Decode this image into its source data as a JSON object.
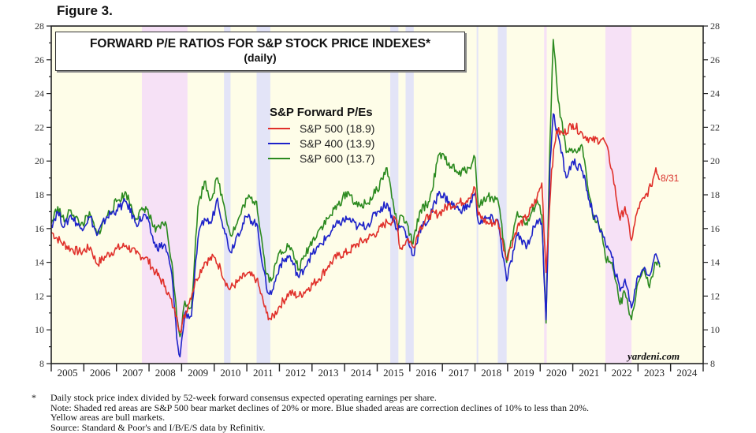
{
  "figure_label": "Figure 3.",
  "chart_data": {
    "type": "line",
    "title": "FORWARD P/E RATIOS FOR S&P STOCK PRICE INDEXES*",
    "subtitle": "(daily)",
    "xlabel": "",
    "ylabel": "",
    "xlim": [
      2005,
      2025
    ],
    "ylim": [
      8,
      28
    ],
    "x_ticks": [
      "2005",
      "2006",
      "2007",
      "2008",
      "2009",
      "2010",
      "2011",
      "2012",
      "2013",
      "2014",
      "2015",
      "2016",
      "2017",
      "2018",
      "2019",
      "2020",
      "2021",
      "2022",
      "2023",
      "2024"
    ],
    "y_ticks": [
      8,
      10,
      12,
      14,
      16,
      18,
      20,
      22,
      24,
      26,
      28
    ],
    "y_axes": "left and right",
    "legend": {
      "title": "S&P Forward P/Es",
      "placement": "upper-center",
      "entries": [
        "S&P 500 (18.9)",
        "S&P 400 (13.9)",
        "S&P 600 (13.7)"
      ]
    },
    "end_label": "8/31",
    "watermark": "yardeni.com",
    "shaded_regions": [
      {
        "type": "bear",
        "color": "#f6e1f6",
        "start": 2007.78,
        "end": 2009.18
      },
      {
        "type": "correction",
        "color": "#e3e4f7",
        "start": 2010.3,
        "end": 2010.5
      },
      {
        "type": "correction",
        "color": "#e3e4f7",
        "start": 2011.3,
        "end": 2011.72
      },
      {
        "type": "correction",
        "color": "#e3e4f7",
        "start": 2015.4,
        "end": 2015.65
      },
      {
        "type": "correction",
        "color": "#e3e4f7",
        "start": 2015.87,
        "end": 2016.12
      },
      {
        "type": "correction",
        "color": "#e3e4f7",
        "start": 2018.05,
        "end": 2018.1
      },
      {
        "type": "correction",
        "color": "#e3e4f7",
        "start": 2018.7,
        "end": 2018.97
      },
      {
        "type": "bear",
        "color": "#f6e1f6",
        "start": 2020.12,
        "end": 2020.2
      },
      {
        "type": "bear",
        "color": "#f6e1f6",
        "start": 2022.0,
        "end": 2022.8
      }
    ],
    "bull_color": "#fefde8",
    "series": [
      {
        "name": "S&P 500",
        "color": "#e0302a",
        "last": 18.9,
        "points": [
          [
            2005.0,
            15.8
          ],
          [
            2005.3,
            15.2
          ],
          [
            2005.6,
            14.8
          ],
          [
            2005.9,
            14.6
          ],
          [
            2006.2,
            14.9
          ],
          [
            2006.4,
            13.9
          ],
          [
            2006.7,
            14.4
          ],
          [
            2007.0,
            14.8
          ],
          [
            2007.3,
            15.0
          ],
          [
            2007.6,
            14.5
          ],
          [
            2007.9,
            14.3
          ],
          [
            2008.2,
            13.4
          ],
          [
            2008.5,
            12.6
          ],
          [
            2008.75,
            11.3
          ],
          [
            2008.85,
            10.8
          ],
          [
            2008.95,
            9.9
          ],
          [
            2009.2,
            11.5
          ],
          [
            2009.45,
            13.0
          ],
          [
            2009.7,
            14.0
          ],
          [
            2010.0,
            14.3
          ],
          [
            2010.2,
            13.6
          ],
          [
            2010.45,
            12.4
          ],
          [
            2010.7,
            12.8
          ],
          [
            2011.0,
            13.3
          ],
          [
            2011.3,
            13.0
          ],
          [
            2011.6,
            11.0
          ],
          [
            2011.75,
            10.6
          ],
          [
            2012.0,
            11.4
          ],
          [
            2012.3,
            12.2
          ],
          [
            2012.6,
            12.0
          ],
          [
            2012.9,
            12.5
          ],
          [
            2013.2,
            13.0
          ],
          [
            2013.5,
            13.8
          ],
          [
            2013.8,
            14.4
          ],
          [
            2014.1,
            14.6
          ],
          [
            2014.4,
            15.1
          ],
          [
            2014.7,
            15.4
          ],
          [
            2015.0,
            15.8
          ],
          [
            2015.3,
            16.4
          ],
          [
            2015.6,
            16.5
          ],
          [
            2015.7,
            14.8
          ],
          [
            2015.95,
            15.4
          ],
          [
            2016.1,
            14.9
          ],
          [
            2016.3,
            16.0
          ],
          [
            2016.6,
            16.8
          ],
          [
            2016.9,
            16.9
          ],
          [
            2017.2,
            17.4
          ],
          [
            2017.5,
            17.5
          ],
          [
            2017.8,
            17.8
          ],
          [
            2018.0,
            18.4
          ],
          [
            2018.1,
            16.8
          ],
          [
            2018.4,
            16.3
          ],
          [
            2018.7,
            16.4
          ],
          [
            2018.97,
            14.2
          ],
          [
            2019.3,
            16.1
          ],
          [
            2019.6,
            16.7
          ],
          [
            2019.9,
            17.8
          ],
          [
            2020.05,
            18.7
          ],
          [
            2020.18,
            13.4
          ],
          [
            2020.35,
            19.5
          ],
          [
            2020.5,
            21.8
          ],
          [
            2020.7,
            21.6
          ],
          [
            2021.0,
            22.2
          ],
          [
            2021.3,
            21.6
          ],
          [
            2021.6,
            21.2
          ],
          [
            2021.9,
            21.3
          ],
          [
            2022.0,
            21.1
          ],
          [
            2022.2,
            19.5
          ],
          [
            2022.45,
            16.5
          ],
          [
            2022.6,
            17.3
          ],
          [
            2022.8,
            15.3
          ],
          [
            2023.0,
            17.2
          ],
          [
            2023.2,
            17.8
          ],
          [
            2023.4,
            18.5
          ],
          [
            2023.55,
            19.6
          ],
          [
            2023.67,
            18.9
          ]
        ]
      },
      {
        "name": "S&P 400",
        "color": "#1d22c9",
        "last": 13.9,
        "points": [
          [
            2005.0,
            16.2
          ],
          [
            2005.2,
            17.0
          ],
          [
            2005.4,
            16.1
          ],
          [
            2005.6,
            16.8
          ],
          [
            2005.9,
            16.0
          ],
          [
            2006.2,
            16.7
          ],
          [
            2006.4,
            15.6
          ],
          [
            2006.7,
            16.7
          ],
          [
            2007.0,
            17.1
          ],
          [
            2007.3,
            17.6
          ],
          [
            2007.6,
            16.3
          ],
          [
            2007.9,
            16.8
          ],
          [
            2008.2,
            14.9
          ],
          [
            2008.5,
            15.0
          ],
          [
            2008.7,
            13.3
          ],
          [
            2008.85,
            9.5
          ],
          [
            2008.95,
            8.4
          ],
          [
            2009.1,
            11.0
          ],
          [
            2009.3,
            10.8
          ],
          [
            2009.5,
            15.4
          ],
          [
            2009.7,
            16.6
          ],
          [
            2009.9,
            16.3
          ],
          [
            2010.1,
            17.8
          ],
          [
            2010.3,
            16.0
          ],
          [
            2010.5,
            14.6
          ],
          [
            2010.7,
            15.6
          ],
          [
            2011.0,
            16.7
          ],
          [
            2011.3,
            16.3
          ],
          [
            2011.6,
            12.5
          ],
          [
            2011.75,
            12.1
          ],
          [
            2012.0,
            13.8
          ],
          [
            2012.3,
            14.4
          ],
          [
            2012.6,
            13.1
          ],
          [
            2012.9,
            14.2
          ],
          [
            2013.2,
            14.9
          ],
          [
            2013.5,
            15.6
          ],
          [
            2013.8,
            16.3
          ],
          [
            2014.1,
            16.6
          ],
          [
            2014.4,
            16.1
          ],
          [
            2014.7,
            16.2
          ],
          [
            2015.0,
            17.0
          ],
          [
            2015.3,
            17.5
          ],
          [
            2015.6,
            16.0
          ],
          [
            2015.8,
            16.1
          ],
          [
            2016.1,
            14.4
          ],
          [
            2016.3,
            15.9
          ],
          [
            2016.6,
            16.6
          ],
          [
            2016.9,
            18.2
          ],
          [
            2017.2,
            17.6
          ],
          [
            2017.5,
            17.1
          ],
          [
            2017.8,
            17.3
          ],
          [
            2018.0,
            18.1
          ],
          [
            2018.1,
            16.4
          ],
          [
            2018.4,
            16.6
          ],
          [
            2018.7,
            16.5
          ],
          [
            2018.97,
            12.9
          ],
          [
            2019.3,
            15.6
          ],
          [
            2019.6,
            15.0
          ],
          [
            2019.9,
            16.5
          ],
          [
            2020.05,
            16.3
          ],
          [
            2020.18,
            10.6
          ],
          [
            2020.3,
            19.8
          ],
          [
            2020.4,
            22.8
          ],
          [
            2020.55,
            21.5
          ],
          [
            2020.8,
            19.0
          ],
          [
            2021.0,
            20.0
          ],
          [
            2021.3,
            19.4
          ],
          [
            2021.6,
            17.0
          ],
          [
            2021.9,
            15.8
          ],
          [
            2022.0,
            15.1
          ],
          [
            2022.2,
            14.3
          ],
          [
            2022.45,
            12.3
          ],
          [
            2022.6,
            13.0
          ],
          [
            2022.8,
            11.3
          ],
          [
            2023.0,
            13.2
          ],
          [
            2023.2,
            13.7
          ],
          [
            2023.35,
            13.2
          ],
          [
            2023.55,
            14.5
          ],
          [
            2023.67,
            13.9
          ]
        ]
      },
      {
        "name": "S&P 600",
        "color": "#2b8a1f",
        "last": 13.7,
        "points": [
          [
            2005.0,
            16.3
          ],
          [
            2005.2,
            17.3
          ],
          [
            2005.4,
            16.4
          ],
          [
            2005.6,
            17.1
          ],
          [
            2005.9,
            16.2
          ],
          [
            2006.2,
            16.8
          ],
          [
            2006.4,
            15.6
          ],
          [
            2006.7,
            16.7
          ],
          [
            2007.0,
            17.6
          ],
          [
            2007.3,
            18.1
          ],
          [
            2007.6,
            16.6
          ],
          [
            2007.9,
            17.3
          ],
          [
            2008.2,
            15.8
          ],
          [
            2008.5,
            16.4
          ],
          [
            2008.7,
            14.0
          ],
          [
            2008.85,
            10.8
          ],
          [
            2008.95,
            9.6
          ],
          [
            2009.1,
            11.7
          ],
          [
            2009.3,
            11.3
          ],
          [
            2009.5,
            17.3
          ],
          [
            2009.7,
            18.8
          ],
          [
            2009.9,
            17.7
          ],
          [
            2010.1,
            19.0
          ],
          [
            2010.3,
            17.4
          ],
          [
            2010.5,
            15.6
          ],
          [
            2010.7,
            16.3
          ],
          [
            2011.0,
            17.8
          ],
          [
            2011.3,
            17.6
          ],
          [
            2011.6,
            13.3
          ],
          [
            2011.75,
            12.9
          ],
          [
            2012.0,
            14.6
          ],
          [
            2012.3,
            15.0
          ],
          [
            2012.6,
            13.6
          ],
          [
            2012.9,
            14.9
          ],
          [
            2013.2,
            15.9
          ],
          [
            2013.5,
            16.6
          ],
          [
            2013.8,
            17.4
          ],
          [
            2014.1,
            18.2
          ],
          [
            2014.4,
            17.3
          ],
          [
            2014.7,
            17.5
          ],
          [
            2015.0,
            18.3
          ],
          [
            2015.3,
            19.6
          ],
          [
            2015.6,
            16.3
          ],
          [
            2015.8,
            16.7
          ],
          [
            2016.1,
            15.1
          ],
          [
            2016.3,
            17.0
          ],
          [
            2016.6,
            17.6
          ],
          [
            2016.9,
            20.4
          ],
          [
            2017.2,
            19.9
          ],
          [
            2017.5,
            19.2
          ],
          [
            2017.8,
            19.6
          ],
          [
            2018.0,
            20.2
          ],
          [
            2018.1,
            17.4
          ],
          [
            2018.4,
            17.9
          ],
          [
            2018.7,
            17.7
          ],
          [
            2018.97,
            14.0
          ],
          [
            2019.3,
            17.0
          ],
          [
            2019.6,
            16.2
          ],
          [
            2019.9,
            17.7
          ],
          [
            2020.05,
            16.8
          ],
          [
            2020.18,
            10.4
          ],
          [
            2020.3,
            21.2
          ],
          [
            2020.4,
            27.2
          ],
          [
            2020.55,
            23.6
          ],
          [
            2020.8,
            20.5
          ],
          [
            2021.0,
            20.5
          ],
          [
            2021.3,
            20.8
          ],
          [
            2021.6,
            16.9
          ],
          [
            2021.9,
            15.6
          ],
          [
            2022.0,
            14.3
          ],
          [
            2022.2,
            14.0
          ],
          [
            2022.45,
            11.5
          ],
          [
            2022.6,
            12.2
          ],
          [
            2022.8,
            10.6
          ],
          [
            2023.0,
            12.8
          ],
          [
            2023.2,
            13.5
          ],
          [
            2023.35,
            12.5
          ],
          [
            2023.55,
            14.0
          ],
          [
            2023.67,
            13.7
          ]
        ]
      }
    ]
  },
  "footnotes": {
    "star": "*",
    "line1": "Daily stock price index divided by 52-week forward consensus expected operating earnings per share.",
    "line2": "Note: Shaded red areas are S&P 500 bear market declines of 20% or more.  Blue shaded areas are correction declines of 10% to less than 20%.",
    "line3": "Yellow areas are bull markets.",
    "line4": "Source: Standard & Poor's and I/B/E/S data by Refinitiv."
  }
}
